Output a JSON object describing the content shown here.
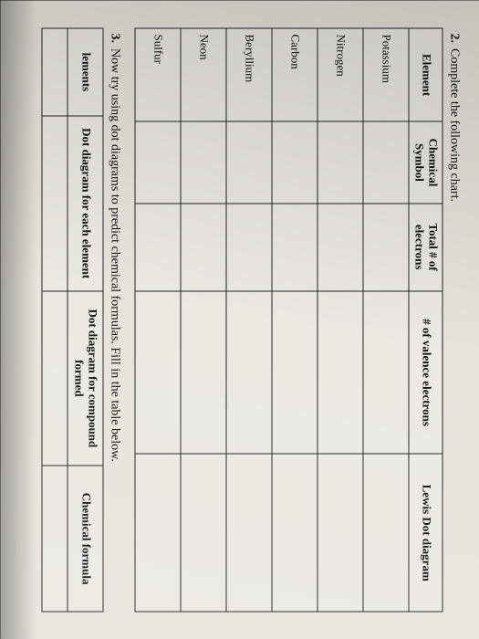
{
  "q2": {
    "number": "2.",
    "text": "Complete the following chart."
  },
  "table1": {
    "headers": {
      "element": "Element",
      "symbol": "Chemical Symbol",
      "total": "Total # of electrons",
      "valence": "# of valence electrons",
      "lewis": "Lewis Dot diagram"
    },
    "rows": [
      {
        "element": "Potassium"
      },
      {
        "element": "Nitrogen"
      },
      {
        "element": "Carbon"
      },
      {
        "element": "Beryllium"
      },
      {
        "element": "Neon"
      },
      {
        "element": "Sulfur"
      }
    ]
  },
  "q3": {
    "number": "3.",
    "text": "Now try using dot diagrams to predict chemical formulas.  Fill in the table below."
  },
  "table2": {
    "headers": {
      "elements": "lements",
      "each": "Dot diagram for each element",
      "compound": "Dot diagram for compound formed",
      "formula": "Chemical formula"
    }
  }
}
